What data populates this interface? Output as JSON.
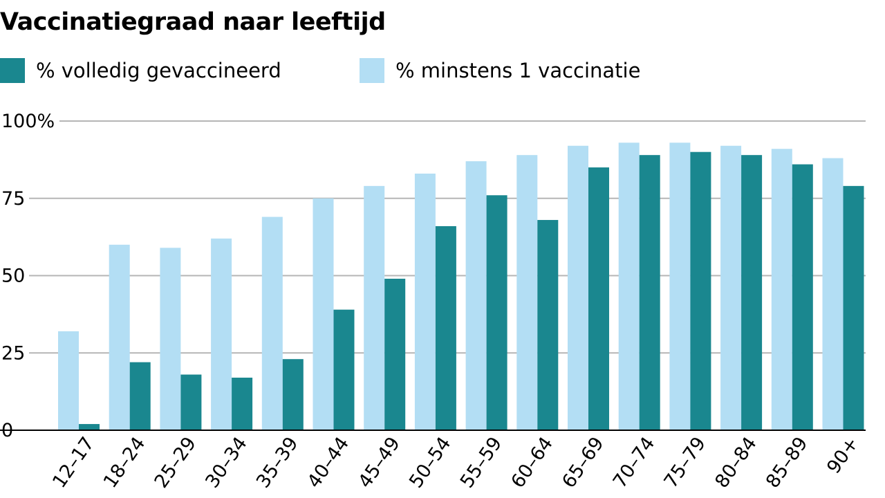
{
  "chart_data": {
    "type": "bar",
    "title": "Vaccinatiegraad naar leeftijd",
    "xlabel": "",
    "ylabel": "",
    "ylim": [
      0,
      100
    ],
    "yticks": [
      {
        "value": 0,
        "label": "0"
      },
      {
        "value": 25,
        "label": "25"
      },
      {
        "value": 50,
        "label": "50"
      },
      {
        "value": 75,
        "label": "75"
      },
      {
        "value": 100,
        "label": "100%"
      }
    ],
    "grid": true,
    "legend_position": "top-left",
    "categories": [
      "12–17",
      "18–24",
      "25–29",
      "30–34",
      "35–39",
      "40–44",
      "45–49",
      "50–54",
      "55–59",
      "60–64",
      "65–69",
      "70–74",
      "75–79",
      "80–84",
      "85–89",
      "90+"
    ],
    "series": [
      {
        "name": "% minstens 1 vaccinatie",
        "color": "#b3def4",
        "values": [
          32,
          60,
          59,
          62,
          69,
          75,
          79,
          83,
          87,
          89,
          92,
          93,
          93,
          92,
          91,
          88
        ]
      },
      {
        "name": "% volledig gevaccineerd",
        "color": "#1a878f",
        "values": [
          2,
          22,
          18,
          17,
          23,
          39,
          49,
          66,
          76,
          68,
          85,
          89,
          90,
          89,
          86,
          79
        ]
      }
    ]
  },
  "legend": {
    "full_label": "% volledig gevaccineerd",
    "one_label": "% minstens 1 vaccinatie"
  },
  "colors": {
    "full": "#1a878f",
    "one": "#b3def4",
    "grid": "#b5b5b5",
    "axis": "#000000"
  }
}
